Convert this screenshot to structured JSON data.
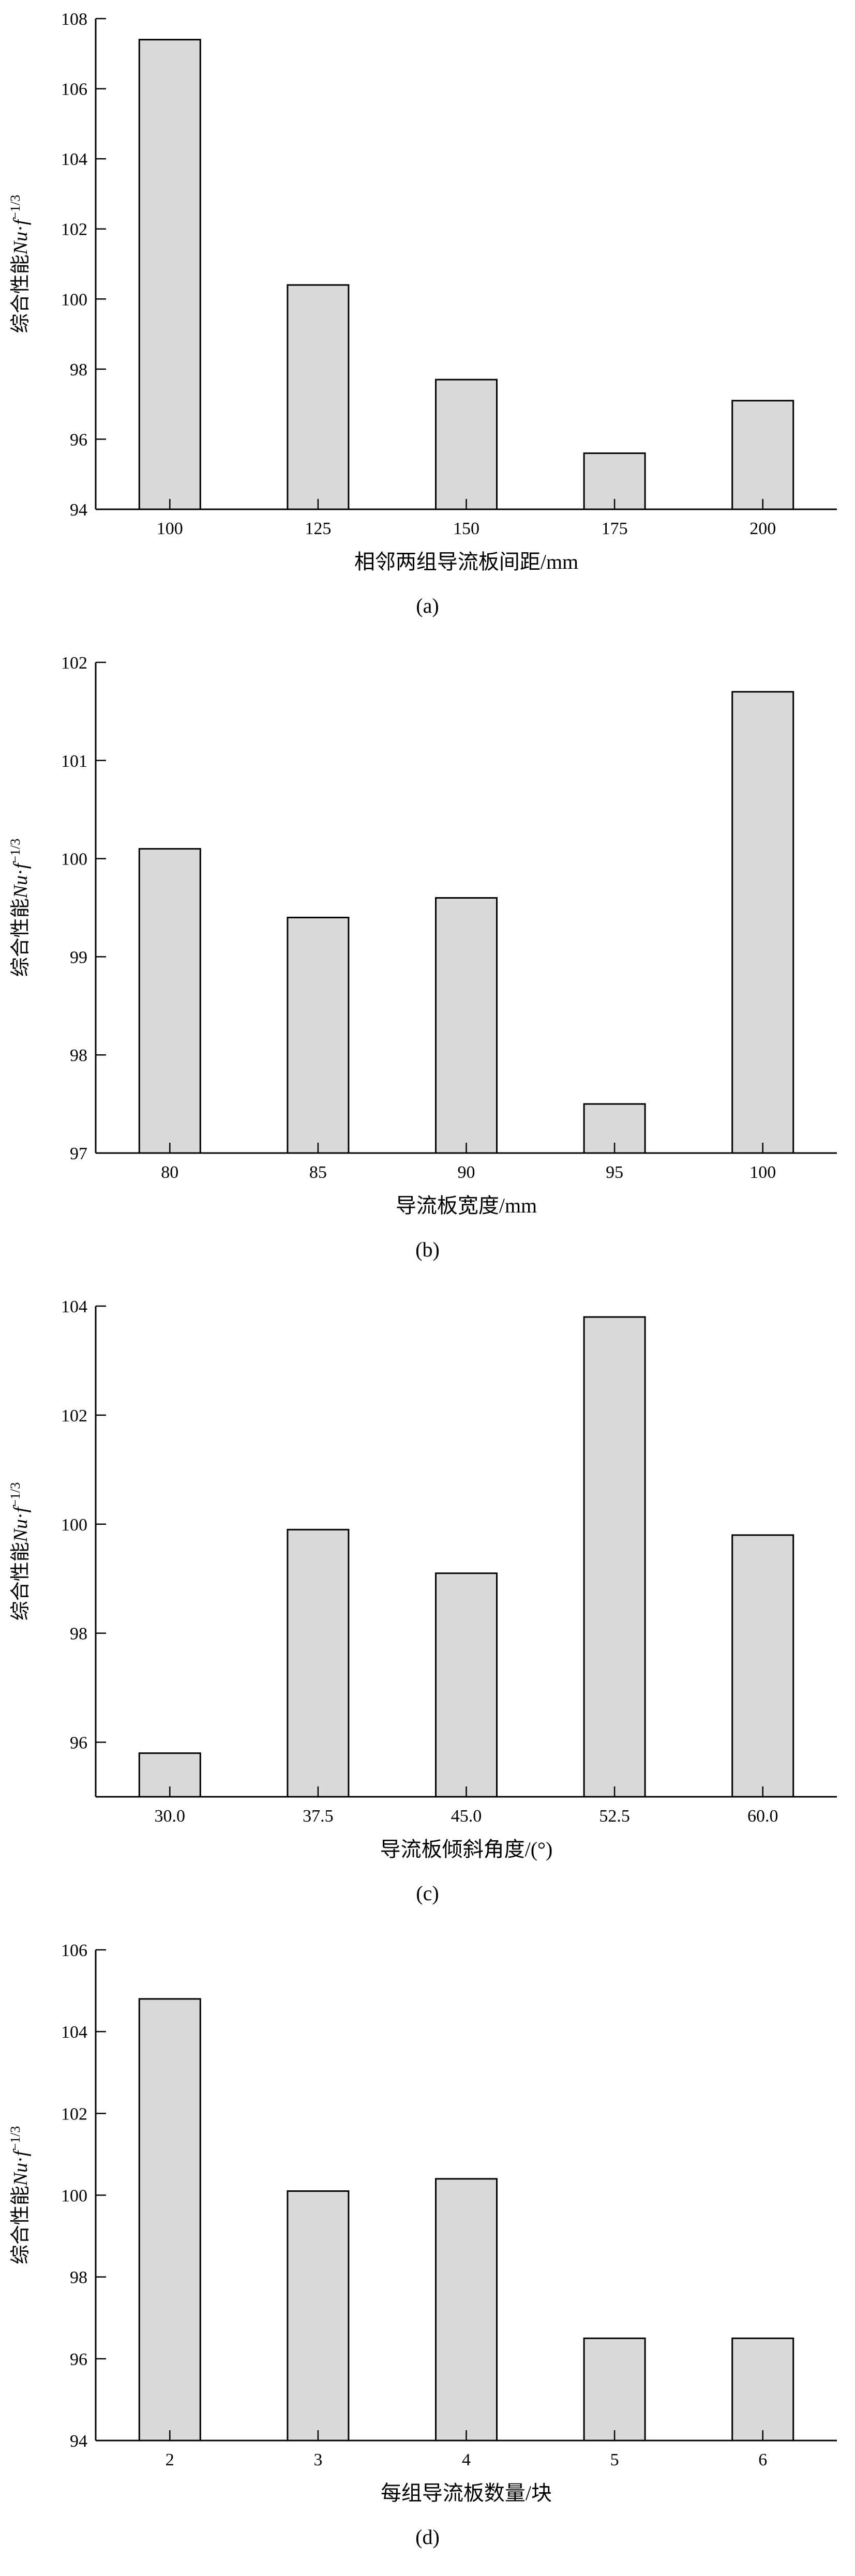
{
  "chart_data": [
    {
      "type": "bar",
      "panel_label": "(a)",
      "categories": [
        "100",
        "125",
        "150",
        "175",
        "200"
      ],
      "values": [
        107.4,
        100.4,
        97.7,
        95.6,
        97.1
      ],
      "xlabel": "相邻两组导流板间距/mm",
      "ylabel": "综合性能Nu·f^(−1/3)",
      "ylabel_parts": {
        "prefix": "综合性能",
        "var1": "Nu",
        "dot": "·",
        "var2": "f",
        "sup": "−1/3"
      },
      "ylim": [
        94,
        108
      ],
      "ytick_step": 2,
      "grid": false,
      "legend": false,
      "bar_fill": "#d9d9d9",
      "bar_stroke": "#000000"
    },
    {
      "type": "bar",
      "panel_label": "(b)",
      "categories": [
        "80",
        "85",
        "90",
        "95",
        "100"
      ],
      "values": [
        100.1,
        99.4,
        99.6,
        97.5,
        101.7
      ],
      "xlabel": "导流板宽度/mm",
      "ylabel": "综合性能Nu·f^(−1/3)",
      "ylabel_parts": {
        "prefix": "综合性能",
        "var1": "Nu",
        "dot": "·",
        "var2": "f",
        "sup": "−1/3"
      },
      "ylim": [
        97,
        102
      ],
      "ytick_step": 1,
      "grid": false,
      "legend": false,
      "bar_fill": "#d9d9d9",
      "bar_stroke": "#000000"
    },
    {
      "type": "bar",
      "panel_label": "(c)",
      "categories": [
        "30.0",
        "37.5",
        "45.0",
        "52.5",
        "60.0"
      ],
      "values": [
        95.8,
        99.9,
        99.1,
        103.8,
        99.8
      ],
      "xlabel": "导流板倾斜角度/(°)",
      "ylabel": "综合性能Nu·f^(−1/3)",
      "ylabel_parts": {
        "prefix": "综合性能",
        "var1": "Nu",
        "dot": "·",
        "var2": "f",
        "sup": "−1/3"
      },
      "ylim": [
        95,
        104
      ],
      "ytick_step": 2,
      "grid": false,
      "legend": false,
      "bar_fill": "#d9d9d9",
      "bar_stroke": "#000000"
    },
    {
      "type": "bar",
      "panel_label": "(d)",
      "categories": [
        "2",
        "3",
        "4",
        "5",
        "6"
      ],
      "values": [
        104.8,
        100.1,
        100.4,
        96.5,
        96.5
      ],
      "xlabel": "每组导流板数量/块",
      "ylabel": "综合性能Nu·f^(−1/3)",
      "ylabel_parts": {
        "prefix": "综合性能",
        "var1": "Nu",
        "dot": "·",
        "var2": "f",
        "sup": "−1/3"
      },
      "ylim": [
        94,
        106
      ],
      "ytick_step": 2,
      "grid": false,
      "legend": false,
      "bar_fill": "#d9d9d9",
      "bar_stroke": "#000000"
    }
  ]
}
